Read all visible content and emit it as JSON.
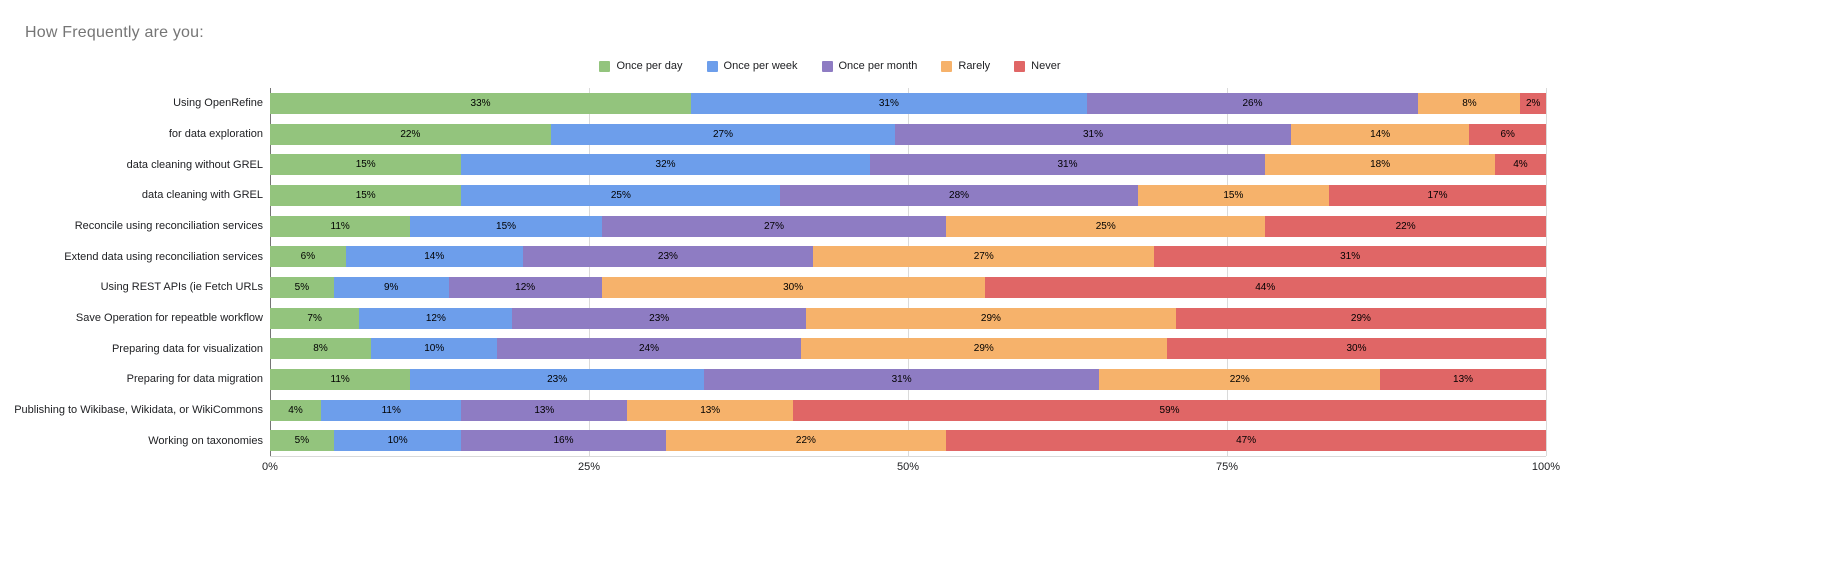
{
  "title": "How Frequently are you:",
  "colors": {
    "background": "#ffffff",
    "title_text": "#757575",
    "axis_text": "#202124",
    "bar_label_text": "#000000",
    "gridline": "#dadada",
    "zero_axis_line": "#757575",
    "baseline": "#d9d9d9"
  },
  "chart_data": {
    "type": "bar",
    "stacked": true,
    "orientation": "horizontal",
    "title": "How Frequently are you:",
    "legend_position": "top",
    "grid": true,
    "xlim": [
      0,
      100
    ],
    "x_ticks": [
      "0%",
      "25%",
      "50%",
      "75%",
      "100%"
    ],
    "value_suffix": "%",
    "categories": [
      "Using OpenRefine",
      "for data exploration",
      "data cleaning without GREL",
      "data cleaning with GREL",
      "Reconcile using reconciliation services",
      "Extend data using reconciliation services",
      "Using REST APIs (ie Fetch URLs",
      "Save Operation for repeatble workflow",
      "Preparing data for visualization",
      "Preparing for data migration",
      "Publishing to Wikibase, Wikidata, or WikiCommons",
      "Working on taxonomies"
    ],
    "series": [
      {
        "name": "Once per day",
        "color": "#93c47d",
        "values": [
          33,
          22,
          15,
          15,
          11,
          6,
          5,
          7,
          8,
          11,
          4,
          5
        ]
      },
      {
        "name": "Once per week",
        "color": "#6d9eeb",
        "values": [
          31,
          27,
          32,
          25,
          15,
          14,
          9,
          12,
          10,
          23,
          11,
          10
        ]
      },
      {
        "name": "Once per month",
        "color": "#8e7cc3",
        "values": [
          26,
          31,
          31,
          28,
          27,
          23,
          12,
          23,
          24,
          31,
          13,
          16
        ]
      },
      {
        "name": "Rarely",
        "color": "#f6b26b",
        "values": [
          8,
          14,
          18,
          15,
          25,
          27,
          30,
          29,
          29,
          22,
          13,
          22
        ]
      },
      {
        "name": "Never",
        "color": "#e06666",
        "values": [
          2,
          6,
          4,
          17,
          22,
          31,
          44,
          29,
          30,
          13,
          59,
          47
        ]
      }
    ]
  }
}
